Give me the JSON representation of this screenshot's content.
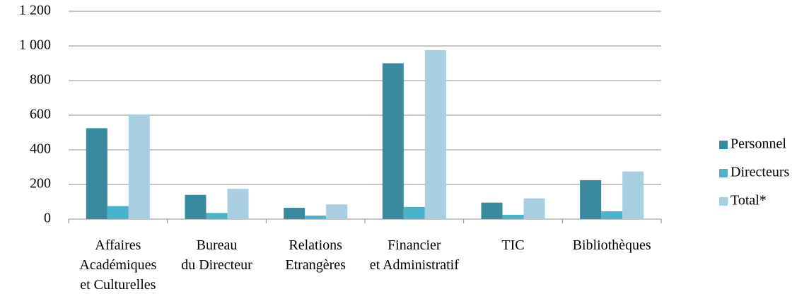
{
  "chart_data": {
    "type": "bar",
    "categories": [
      "Affaires\nAcadémiques\net Culturelles",
      "Bureau\ndu Directeur",
      "Relations\nEtrangères",
      "Financier\net Administratif",
      "TIC",
      "Bibliothèques"
    ],
    "series": [
      {
        "name": "Personnel",
        "color": "#3a8a9e",
        "values": [
          525,
          140,
          65,
          900,
          95,
          225
        ]
      },
      {
        "name": "Directeurs",
        "color": "#4bb3c9",
        "values": [
          75,
          35,
          20,
          70,
          25,
          45
        ]
      },
      {
        "name": "Total*",
        "color": "#a8cfdf",
        "values": [
          605,
          175,
          85,
          975,
          120,
          275
        ]
      }
    ],
    "ylim": [
      0,
      1200
    ],
    "yticks": [
      0,
      200,
      400,
      600,
      800,
      {
        "value": 1000,
        "label": "1 000"
      },
      {
        "value": 1200,
        "label": "1 200"
      }
    ],
    "grid": true,
    "legend": "right"
  }
}
